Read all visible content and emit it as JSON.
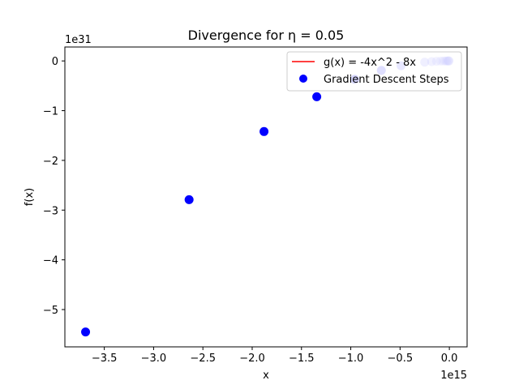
{
  "chart_data": {
    "type": "scatter",
    "title": "Divergence for η = 0.05",
    "xlabel": "x",
    "ylabel": "f(x)",
    "x_offset_label": "1e15",
    "y_offset_label": "1e31",
    "x_scale": 1000000000000000.0,
    "y_scale": 1e+31,
    "xlim": [
      -3.9,
      0.18
    ],
    "ylim": [
      -5.75,
      0.28
    ],
    "xticks": [
      -3.5,
      -3.0,
      -2.5,
      -2.0,
      -1.5,
      -1.0,
      -0.5,
      0.0
    ],
    "xtick_labels": [
      "−3.5",
      "−3.0",
      "−2.5",
      "−2.0",
      "−1.5",
      "−1.0",
      "−0.5",
      "0.0"
    ],
    "yticks": [
      0,
      -1,
      -2,
      -3,
      -4,
      -5
    ],
    "ytick_labels": [
      "0",
      "−1",
      "−2",
      "−3",
      "−4",
      "−5"
    ],
    "grid": false,
    "legend_position": "top-right",
    "series": [
      {
        "name": "g(x) = -4x^2 - 8x",
        "kind": "line",
        "color": "#ff0000",
        "points": []
      },
      {
        "name": "Gradient Descent Steps",
        "kind": "scatter",
        "color": "#0000ff",
        "points": [
          {
            "x": -3690000000000000.0,
            "y": -5.45e+31,
            "alpha": 1.0
          },
          {
            "x": -2640000000000000.0,
            "y": -2.79e+31,
            "alpha": 1.0
          },
          {
            "x": -1880000000000000.0,
            "y": -1.42e+31,
            "alpha": 1.0
          },
          {
            "x": -1345000000000000.0,
            "y": -7.2e+30,
            "alpha": 1.0
          },
          {
            "x": -960000000000000.0,
            "y": -3.7e+30,
            "alpha": 0.78
          },
          {
            "x": -690000000000000.0,
            "y": -1.9e+30,
            "alpha": 0.62
          },
          {
            "x": -490000000000000.0,
            "y": -9.6e+29,
            "alpha": 0.48
          },
          {
            "x": -250000000000000.0,
            "y": -2.5e+29,
            "alpha": 0.32
          },
          {
            "x": -180000000000000.0,
            "y": -1.3e+29,
            "alpha": 0.28
          },
          {
            "x": -130000000000000.0,
            "y": -6.8e+28,
            "alpha": 0.25
          },
          {
            "x": -90000000000000.0,
            "y": -3.2e+28,
            "alpha": 0.22
          },
          {
            "x": -65000000000000.0,
            "y": -1.7e+28,
            "alpha": 0.2
          },
          {
            "x": -45000000000000.0,
            "y": -8e+27,
            "alpha": 0.2
          },
          {
            "x": -30000000000000.0,
            "y": -3.6e+27,
            "alpha": 0.2
          },
          {
            "x": -20000000000000.0,
            "y": -1.6e+27,
            "alpha": 0.2
          },
          {
            "x": -12000000000000.0,
            "y": -5.8e+26,
            "alpha": 0.2
          },
          {
            "x": -6000000000000.0,
            "y": -1.4e+26,
            "alpha": 0.2
          },
          {
            "x": -2000000000000.0,
            "y": -1.6e+25,
            "alpha": 0.2
          }
        ]
      }
    ]
  }
}
